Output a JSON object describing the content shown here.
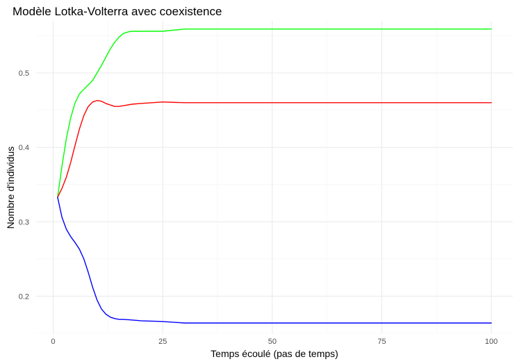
{
  "chart_data": {
    "type": "line",
    "title": "Modèle Lotka-Volterra avec coexistence",
    "xlabel": "Temps écoulé (pas de temps)",
    "ylabel": "Nombre d'individus",
    "xlim": [
      1,
      100
    ],
    "ylim": [
      0.15,
      0.57
    ],
    "xticks": [
      0,
      25,
      50,
      75,
      100
    ],
    "yticks": [
      0.2,
      0.3,
      0.4,
      0.5
    ],
    "grid": true,
    "legend": "none",
    "series": [
      {
        "color": "#00ff00",
        "points": [
          [
            1,
            0.333
          ],
          [
            2,
            0.375
          ],
          [
            3,
            0.412
          ],
          [
            4,
            0.44
          ],
          [
            5,
            0.46
          ],
          [
            6,
            0.472
          ],
          [
            7,
            0.478
          ],
          [
            8,
            0.484
          ],
          [
            9,
            0.49
          ],
          [
            10,
            0.5
          ],
          [
            11,
            0.51
          ],
          [
            12,
            0.521
          ],
          [
            13,
            0.532
          ],
          [
            14,
            0.541
          ],
          [
            15,
            0.548
          ],
          [
            16,
            0.553
          ],
          [
            17,
            0.555
          ],
          [
            18,
            0.556
          ],
          [
            20,
            0.556
          ],
          [
            25,
            0.556
          ],
          [
            30,
            0.559
          ],
          [
            35,
            0.559
          ],
          [
            40,
            0.559
          ],
          [
            50,
            0.559
          ],
          [
            60,
            0.559
          ],
          [
            70,
            0.559
          ],
          [
            80,
            0.559
          ],
          [
            90,
            0.559
          ],
          [
            100,
            0.559
          ]
        ]
      },
      {
        "color": "#ff0000",
        "points": [
          [
            1,
            0.333
          ],
          [
            2,
            0.345
          ],
          [
            3,
            0.36
          ],
          [
            4,
            0.38
          ],
          [
            5,
            0.403
          ],
          [
            6,
            0.425
          ],
          [
            7,
            0.443
          ],
          [
            8,
            0.455
          ],
          [
            9,
            0.461
          ],
          [
            10,
            0.463
          ],
          [
            11,
            0.462
          ],
          [
            12,
            0.459
          ],
          [
            13,
            0.457
          ],
          [
            14,
            0.455
          ],
          [
            15,
            0.455
          ],
          [
            16,
            0.456
          ],
          [
            18,
            0.458
          ],
          [
            20,
            0.459
          ],
          [
            25,
            0.461
          ],
          [
            30,
            0.46
          ],
          [
            35,
            0.46
          ],
          [
            40,
            0.46
          ],
          [
            50,
            0.46
          ],
          [
            60,
            0.46
          ],
          [
            70,
            0.46
          ],
          [
            80,
            0.46
          ],
          [
            90,
            0.46
          ],
          [
            100,
            0.46
          ]
        ]
      },
      {
        "color": "#0000ff",
        "points": [
          [
            1,
            0.333
          ],
          [
            2,
            0.306
          ],
          [
            3,
            0.29
          ],
          [
            4,
            0.28
          ],
          [
            5,
            0.272
          ],
          [
            6,
            0.263
          ],
          [
            7,
            0.25
          ],
          [
            8,
            0.232
          ],
          [
            9,
            0.212
          ],
          [
            10,
            0.195
          ],
          [
            11,
            0.183
          ],
          [
            12,
            0.176
          ],
          [
            13,
            0.172
          ],
          [
            14,
            0.17
          ],
          [
            15,
            0.169
          ],
          [
            16,
            0.169
          ],
          [
            18,
            0.168
          ],
          [
            20,
            0.167
          ],
          [
            25,
            0.166
          ],
          [
            30,
            0.164
          ],
          [
            35,
            0.164
          ],
          [
            40,
            0.164
          ],
          [
            50,
            0.164
          ],
          [
            60,
            0.164
          ],
          [
            70,
            0.164
          ],
          [
            80,
            0.164
          ],
          [
            90,
            0.164
          ],
          [
            100,
            0.164
          ]
        ]
      }
    ]
  }
}
